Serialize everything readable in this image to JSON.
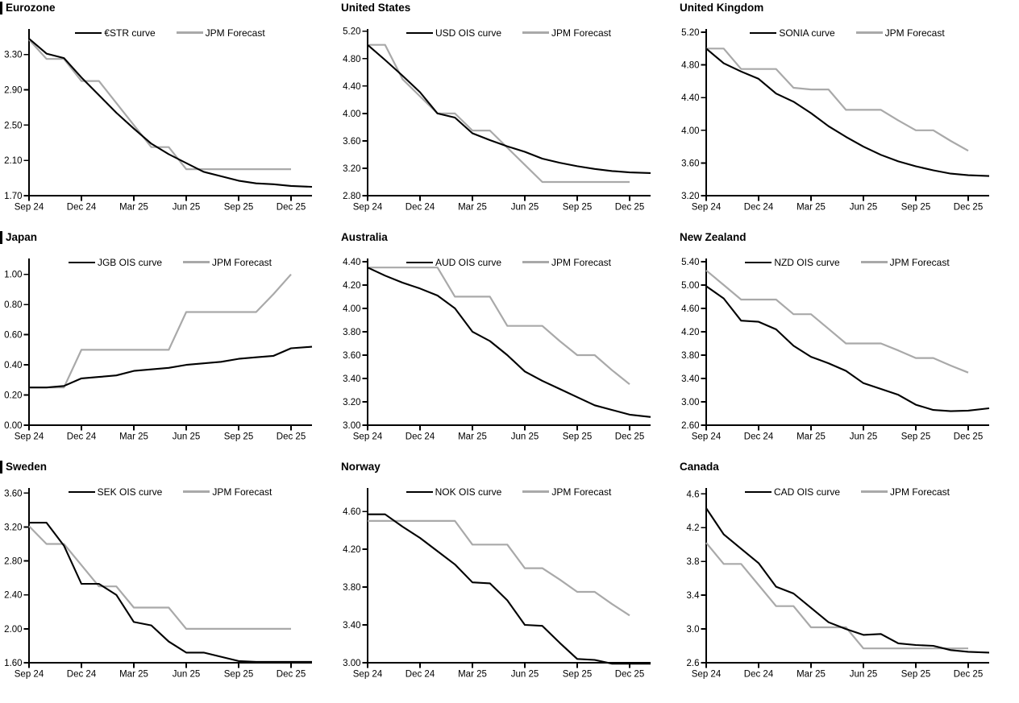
{
  "colors": {
    "ois_line": "#000000",
    "forecast_line": "#a9a9a9"
  },
  "axis": {
    "x_tick_labels": [
      "Sep 24",
      "Dec 24",
      "Mar 25",
      "Jun 25",
      "Sep 25",
      "Dec 25"
    ],
    "x_tick_positions": [
      0,
      3,
      6,
      9,
      12,
      15
    ],
    "x_unit": "months, 0 = Sep 2024 through 15 = Dec 2025"
  },
  "chart_data": [
    {
      "type": "line",
      "title": "Eurozone",
      "left_bar": true,
      "legend_position": "top-center",
      "x_tick_labels": [
        "Sep 24",
        "Dec 24",
        "Mar 25",
        "Jun 25",
        "Sep 25",
        "Dec 25"
      ],
      "ylim": [
        1.7,
        3.58
      ],
      "ytick_labels": [
        "3.30",
        "2.90",
        "2.50",
        "2.10",
        "1.70"
      ],
      "series": [
        {
          "name": "€STR curve",
          "color": "#000000",
          "x": [
            0,
            1,
            2,
            3,
            4,
            5,
            6,
            7,
            8,
            9,
            10,
            11,
            12,
            13,
            14,
            15,
            16.2
          ],
          "values": [
            3.48,
            3.31,
            3.26,
            3.04,
            2.84,
            2.64,
            2.46,
            2.29,
            2.17,
            2.07,
            1.97,
            1.92,
            1.87,
            1.84,
            1.83,
            1.81,
            1.8
          ]
        },
        {
          "name": "JPM Forecast",
          "color": "#a9a9a9",
          "x": [
            0,
            1,
            2,
            3,
            4,
            5,
            6,
            7,
            8,
            9,
            10,
            11,
            12,
            13,
            14,
            15
          ],
          "values": [
            3.47,
            3.25,
            3.25,
            3.0,
            3.0,
            2.75,
            2.5,
            2.25,
            2.25,
            2.0,
            2.0,
            2.0,
            2.0,
            2.0,
            2.0,
            2.0
          ]
        }
      ]
    },
    {
      "type": "line",
      "title": "United States",
      "left_bar": false,
      "legend_position": "top-center",
      "x_tick_labels": [
        "Sep 24",
        "Dec 24",
        "Mar 25",
        "Jun 25",
        "Sep 25",
        "Dec 25"
      ],
      "ylim": [
        2.8,
        5.22
      ],
      "ytick_labels": [
        "5.20",
        "4.80",
        "4.40",
        "4.00",
        "3.60",
        "3.20",
        "2.80"
      ],
      "series": [
        {
          "name": "USD OIS curve",
          "color": "#000000",
          "x": [
            0,
            1,
            2,
            3,
            4,
            5,
            6,
            7,
            8,
            9,
            10,
            11,
            12,
            13,
            14,
            15,
            16.2
          ],
          "values": [
            5.0,
            4.78,
            4.55,
            4.31,
            4.0,
            3.94,
            3.71,
            3.61,
            3.52,
            3.44,
            3.34,
            3.28,
            3.23,
            3.19,
            3.16,
            3.14,
            3.13
          ]
        },
        {
          "name": "JPM Forecast",
          "color": "#a9a9a9",
          "x": [
            0,
            1,
            2,
            3,
            4,
            5,
            6,
            7,
            8,
            9,
            10,
            11,
            12,
            13,
            14,
            15
          ],
          "values": [
            5.0,
            5.0,
            4.5,
            4.25,
            4.0,
            4.0,
            3.75,
            3.75,
            3.5,
            3.25,
            3.0,
            3.0,
            3.0,
            3.0,
            3.0,
            3.0
          ]
        }
      ]
    },
    {
      "type": "line",
      "title": "United Kingdom",
      "left_bar": false,
      "legend_position": "top-center",
      "x_tick_labels": [
        "Sep 24",
        "Dec 24",
        "Mar 25",
        "Jun 25",
        "Sep 25",
        "Dec 25"
      ],
      "ylim": [
        3.2,
        5.23
      ],
      "ytick_labels": [
        "5.20",
        "4.80",
        "4.40",
        "4.00",
        "3.60",
        "3.20"
      ],
      "series": [
        {
          "name": "SONIA curve",
          "color": "#000000",
          "x": [
            0,
            1,
            2,
            3,
            4,
            5,
            6,
            7,
            8,
            9,
            10,
            11,
            12,
            13,
            14,
            15,
            16.2
          ],
          "values": [
            5.0,
            4.82,
            4.72,
            4.63,
            4.45,
            4.35,
            4.21,
            4.05,
            3.92,
            3.8,
            3.7,
            3.62,
            3.56,
            3.51,
            3.47,
            3.45,
            3.44
          ]
        },
        {
          "name": "JPM Forecast",
          "color": "#a9a9a9",
          "x": [
            0,
            1,
            2,
            3,
            4,
            5,
            6,
            7,
            8,
            9,
            10,
            11,
            12,
            13,
            14,
            15
          ],
          "values": [
            5.0,
            5.0,
            4.75,
            4.75,
            4.75,
            4.52,
            4.5,
            4.5,
            4.25,
            4.25,
            4.25,
            4.12,
            4.0,
            4.0,
            3.87,
            3.75
          ]
        }
      ]
    },
    {
      "type": "line",
      "title": "Japan",
      "left_bar": true,
      "legend_position": "top-center",
      "x_tick_labels": [
        "Sep 24",
        "Dec 24",
        "Mar 25",
        "Jun 25",
        "Sep 25",
        "Dec 25"
      ],
      "ylim": [
        0.0,
        1.1
      ],
      "ytick_labels": [
        "1.00",
        "0.80",
        "0.60",
        "0.40",
        "0.20",
        "0.00"
      ],
      "series": [
        {
          "name": "JGB OIS curve",
          "color": "#000000",
          "x": [
            0,
            1,
            2,
            3,
            4,
            5,
            6,
            7,
            8,
            9,
            10,
            11,
            12,
            13,
            14,
            15,
            16.2
          ],
          "values": [
            0.25,
            0.25,
            0.26,
            0.31,
            0.32,
            0.33,
            0.36,
            0.37,
            0.38,
            0.4,
            0.41,
            0.42,
            0.44,
            0.45,
            0.46,
            0.51,
            0.52
          ]
        },
        {
          "name": "JPM Forecast",
          "color": "#a9a9a9",
          "x": [
            0,
            1,
            2,
            3,
            4,
            5,
            6,
            7,
            8,
            9,
            10,
            11,
            12,
            13,
            14,
            15
          ],
          "values": [
            0.25,
            0.25,
            0.25,
            0.5,
            0.5,
            0.5,
            0.5,
            0.5,
            0.5,
            0.75,
            0.75,
            0.75,
            0.75,
            0.75,
            0.87,
            1.0
          ]
        }
      ]
    },
    {
      "type": "line",
      "title": "Australia",
      "left_bar": false,
      "legend_position": "top-center",
      "x_tick_labels": [
        "Sep 24",
        "Dec 24",
        "Mar 25",
        "Jun 25",
        "Sep 25",
        "Dec 25"
      ],
      "ylim": [
        3.0,
        4.42
      ],
      "ytick_labels": [
        "4.40",
        "4.20",
        "4.00",
        "3.80",
        "3.60",
        "3.40",
        "3.20",
        "3.00"
      ],
      "series": [
        {
          "name": "AUD OIS curve",
          "color": "#000000",
          "x": [
            0,
            1,
            2,
            3,
            4,
            5,
            6,
            7,
            8,
            9,
            10,
            11,
            12,
            13,
            14,
            15,
            16.2
          ],
          "values": [
            4.35,
            4.28,
            4.22,
            4.17,
            4.11,
            4.0,
            3.8,
            3.72,
            3.6,
            3.46,
            3.38,
            3.31,
            3.24,
            3.17,
            3.13,
            3.09,
            3.07
          ]
        },
        {
          "name": "JPM Forecast",
          "color": "#a9a9a9",
          "x": [
            0,
            1,
            2,
            3,
            4,
            5,
            6,
            7,
            8,
            9,
            10,
            11,
            12,
            13,
            14,
            15
          ],
          "values": [
            4.35,
            4.35,
            4.35,
            4.35,
            4.35,
            4.1,
            4.1,
            4.1,
            3.85,
            3.85,
            3.85,
            3.72,
            3.6,
            3.6,
            3.47,
            3.35
          ]
        }
      ]
    },
    {
      "type": "line",
      "title": "New Zealand",
      "left_bar": false,
      "legend_position": "top-center",
      "x_tick_labels": [
        "Sep 24",
        "Dec 24",
        "Mar 25",
        "Jun 25",
        "Sep 25",
        "Dec 25"
      ],
      "ylim": [
        2.6,
        5.44
      ],
      "ytick_labels": [
        "5.40",
        "5.00",
        "4.60",
        "4.20",
        "3.80",
        "3.40",
        "3.00",
        "2.60"
      ],
      "series": [
        {
          "name": "NZD OIS curve",
          "color": "#000000",
          "x": [
            0,
            1,
            2,
            3,
            4,
            5,
            6,
            7,
            8,
            9,
            10,
            11,
            12,
            13,
            14,
            15,
            16.2
          ],
          "values": [
            4.98,
            4.77,
            4.39,
            4.37,
            4.24,
            3.96,
            3.77,
            3.66,
            3.53,
            3.32,
            3.22,
            3.12,
            2.95,
            2.86,
            2.84,
            2.85,
            2.89
          ]
        },
        {
          "name": "JPM Forecast",
          "color": "#a9a9a9",
          "x": [
            0,
            1,
            2,
            3,
            4,
            5,
            6,
            7,
            8,
            9,
            10,
            11,
            12,
            13,
            14,
            15
          ],
          "values": [
            5.25,
            5.0,
            4.75,
            4.75,
            4.75,
            4.5,
            4.5,
            4.25,
            4.0,
            4.0,
            4.0,
            3.88,
            3.75,
            3.75,
            3.62,
            3.5
          ]
        }
      ]
    },
    {
      "type": "line",
      "title": "Sweden",
      "left_bar": true,
      "legend_position": "top-center",
      "x_tick_labels": [
        "Sep 24",
        "Dec 24",
        "Mar 25",
        "Jun 25",
        "Sep 25",
        "Dec 25"
      ],
      "ylim": [
        1.6,
        3.65
      ],
      "ytick_labels": [
        "3.60",
        "3.20",
        "2.80",
        "2.40",
        "2.00",
        "1.60"
      ],
      "series": [
        {
          "name": "SEK OIS curve",
          "color": "#000000",
          "x": [
            0,
            1,
            2,
            3,
            4,
            5,
            6,
            7,
            8,
            9,
            10,
            11,
            12,
            13,
            14,
            15,
            16.2
          ],
          "values": [
            3.25,
            3.25,
            2.98,
            2.53,
            2.53,
            2.4,
            2.08,
            2.04,
            1.85,
            1.72,
            1.72,
            1.67,
            1.62,
            1.61,
            1.61,
            1.61,
            1.61
          ]
        },
        {
          "name": "JPM Forecast",
          "color": "#a9a9a9",
          "x": [
            0,
            1,
            2,
            3,
            4,
            5,
            6,
            7,
            8,
            9,
            10,
            11,
            12,
            13,
            14,
            15
          ],
          "values": [
            3.21,
            3.0,
            3.0,
            2.75,
            2.5,
            2.5,
            2.25,
            2.25,
            2.25,
            2.0,
            2.0,
            2.0,
            2.0,
            2.0,
            2.0,
            2.0
          ]
        }
      ]
    },
    {
      "type": "line",
      "title": "Norway",
      "left_bar": false,
      "legend_position": "top-center",
      "x_tick_labels": [
        "Sep 24",
        "Dec 24",
        "Mar 25",
        "Jun 25",
        "Sep 25",
        "Dec 25"
      ],
      "ylim": [
        3.0,
        4.84
      ],
      "ytick_labels": [
        "4.60",
        "4.20",
        "3.80",
        "3.40",
        "3.00"
      ],
      "series": [
        {
          "name": "NOK OIS curve",
          "color": "#000000",
          "x": [
            0,
            1,
            2,
            3,
            4,
            5,
            6,
            7,
            8,
            9,
            10,
            11,
            12,
            13,
            14,
            15,
            16.2
          ],
          "values": [
            4.57,
            4.57,
            4.44,
            4.32,
            4.18,
            4.04,
            3.85,
            3.84,
            3.66,
            3.4,
            3.39,
            3.21,
            3.04,
            3.03,
            2.99,
            2.99,
            2.99
          ]
        },
        {
          "name": "JPM Forecast",
          "color": "#a9a9a9",
          "x": [
            0,
            1,
            2,
            3,
            4,
            5,
            6,
            7,
            8,
            9,
            10,
            11,
            12,
            13,
            14,
            15
          ],
          "values": [
            4.5,
            4.5,
            4.5,
            4.5,
            4.5,
            4.5,
            4.25,
            4.25,
            4.25,
            4.0,
            4.0,
            3.88,
            3.75,
            3.75,
            3.62,
            3.5
          ]
        }
      ]
    },
    {
      "type": "line",
      "title": "Canada",
      "left_bar": false,
      "legend_position": "top-center",
      "x_tick_labels": [
        "Sep 24",
        "Dec 24",
        "Mar 25",
        "Jun 25",
        "Sep 25",
        "Dec 25"
      ],
      "ylim": [
        2.6,
        4.66
      ],
      "ytick_labels": [
        "4.6",
        "4.2",
        "3.8",
        "3.4",
        "3.0",
        "2.6"
      ],
      "series": [
        {
          "name": "CAD OIS curve",
          "color": "#000000",
          "x": [
            0,
            1,
            2,
            3,
            4,
            5,
            6,
            7,
            8,
            9,
            10,
            11,
            12,
            13,
            14,
            15,
            16.2
          ],
          "values": [
            4.43,
            4.12,
            3.95,
            3.78,
            3.5,
            3.42,
            3.25,
            3.08,
            3.0,
            2.93,
            2.94,
            2.83,
            2.81,
            2.8,
            2.75,
            2.73,
            2.72
          ]
        },
        {
          "name": "JPM Forecast",
          "color": "#a9a9a9",
          "x": [
            0,
            1,
            2,
            3,
            4,
            5,
            6,
            7,
            8,
            9,
            10,
            11,
            12,
            13,
            14,
            15
          ],
          "values": [
            4.02,
            3.77,
            3.77,
            3.52,
            3.27,
            3.27,
            3.02,
            3.02,
            3.02,
            2.77,
            2.77,
            2.77,
            2.77,
            2.77,
            2.77,
            2.77
          ]
        }
      ]
    }
  ]
}
